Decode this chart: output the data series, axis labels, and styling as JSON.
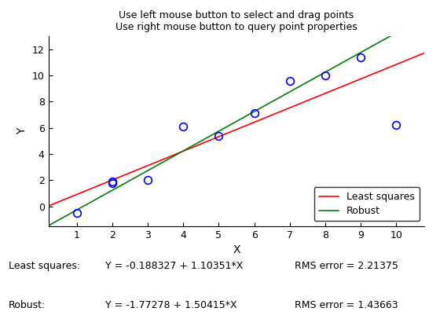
{
  "title_line1": "Use left mouse button to select and drag points",
  "title_line2": "Use right mouse button to query point properties",
  "xlabel": "X",
  "ylabel": "Y",
  "points_x": [
    1,
    2,
    2,
    3,
    4,
    5,
    6,
    7,
    8,
    9,
    10
  ],
  "points_y": [
    -0.5,
    1.8,
    1.9,
    2.0,
    6.1,
    5.4,
    7.1,
    9.6,
    10.0,
    11.4,
    6.2
  ],
  "xlim": [
    0.2,
    10.8
  ],
  "ylim": [
    -1.5,
    13.0
  ],
  "xticks": [
    1,
    2,
    3,
    4,
    5,
    6,
    7,
    8,
    9,
    10
  ],
  "yticks": [
    0,
    2,
    4,
    6,
    8,
    10,
    12
  ],
  "ls_intercept": -0.188327,
  "ls_slope": 1.10351,
  "rob_intercept": -1.77278,
  "rob_slope": 1.50415,
  "ls_color": "red",
  "rob_color": "green",
  "point_color": "blue",
  "ls_label": "Least squares",
  "rob_label": "Robust",
  "ls_eq": "Y = -0.188327 + 1.10351*X",
  "rob_eq": "Y = -1.77278 + 1.50415*X",
  "ls_rms": "RMS error = 2.21375",
  "rob_rms": "RMS error = 1.43663",
  "ls_tag": "Least squares:",
  "rob_tag": "Robust:",
  "background_color": "#ffffff",
  "legend_fontsize": 9,
  "axis_fontsize": 10,
  "title_fontsize": 9,
  "tick_fontsize": 9,
  "annotation_fontsize": 9
}
